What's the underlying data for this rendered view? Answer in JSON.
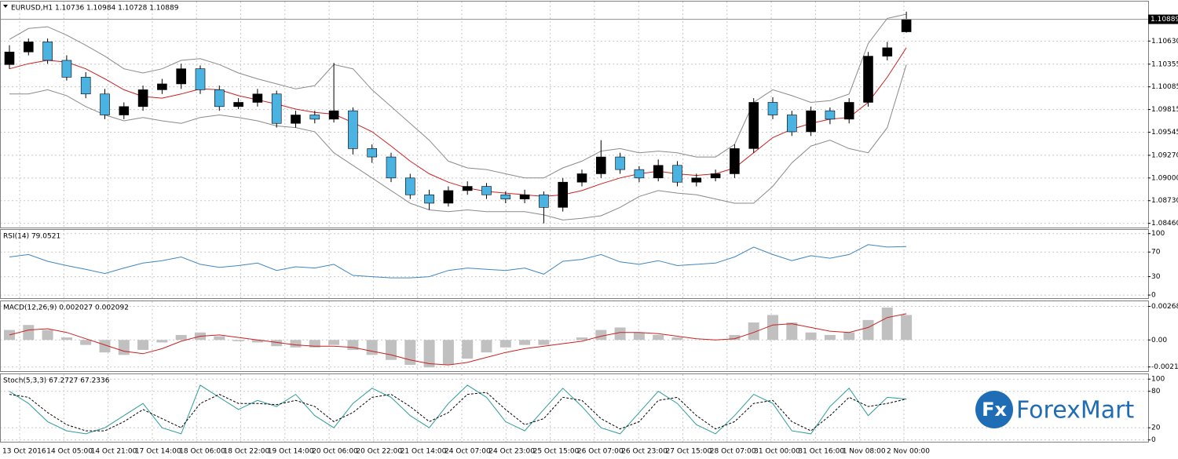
{
  "chart_data": [
    {
      "type": "candlestick",
      "title": "EURUSD,H1  1.10736 1.10984 1.10728 1.10889",
      "open": [
        1.1035,
        1.105,
        1.1062,
        1.104,
        1.102,
        1.1,
        1.0975,
        1.0985,
        1.1005,
        1.1012,
        1.103,
        1.1005,
        1.0985,
        1.099,
        1.1,
        1.0965,
        1.0975,
        1.097,
        1.098,
        1.0935,
        1.0925,
        1.09,
        1.088,
        1.087,
        1.0885,
        1.089,
        1.088,
        1.0875,
        1.088,
        1.0865,
        1.0895,
        1.0905,
        1.0925,
        1.091,
        1.09,
        1.0915,
        1.0895,
        1.09,
        1.0905,
        1.0935,
        1.099,
        1.0975,
        1.0955,
        1.098,
        1.097,
        1.099,
        1.1045,
        1.1074
      ],
      "high": [
        1.1058,
        1.1066,
        1.1066,
        1.1046,
        1.1026,
        1.1006,
        1.099,
        1.101,
        1.1018,
        1.1036,
        1.1034,
        1.101,
        1.0995,
        1.1006,
        1.1004,
        1.098,
        1.098,
        1.1037,
        1.0984,
        1.094,
        1.093,
        1.0905,
        1.0886,
        1.089,
        1.0896,
        1.0894,
        1.0884,
        1.0886,
        1.0884,
        1.09,
        1.091,
        1.0945,
        1.093,
        1.0914,
        1.0922,
        1.092,
        1.0905,
        1.091,
        1.094,
        1.0995,
        1.0996,
        1.098,
        1.0985,
        1.0984,
        1.0995,
        1.105,
        1.1062,
        1.1098
      ],
      "low": [
        1.103,
        1.1046,
        1.1036,
        1.1016,
        1.0995,
        1.097,
        1.097,
        1.098,
        1.1,
        1.1006,
        1.1,
        1.098,
        1.0982,
        1.0985,
        1.096,
        1.096,
        1.0965,
        1.0966,
        1.0928,
        1.0918,
        1.0895,
        1.0875,
        1.0862,
        1.0866,
        1.088,
        1.0875,
        1.087,
        1.087,
        1.0846,
        1.086,
        1.089,
        1.09,
        1.0905,
        1.0895,
        1.0896,
        1.089,
        1.089,
        1.0896,
        1.09,
        1.093,
        1.097,
        1.095,
        1.095,
        1.0964,
        1.0965,
        1.0985,
        1.104,
        1.1073
      ],
      "close": [
        1.105,
        1.1062,
        1.104,
        1.102,
        1.1,
        1.0975,
        1.0985,
        1.1005,
        1.1012,
        1.103,
        1.1005,
        1.0985,
        1.099,
        1.1,
        1.0965,
        1.0975,
        1.097,
        1.098,
        1.0935,
        1.0925,
        1.09,
        1.088,
        1.087,
        1.0885,
        1.089,
        1.088,
        1.0875,
        1.088,
        1.0865,
        1.0895,
        1.0905,
        1.0925,
        1.091,
        1.09,
        1.0915,
        1.0895,
        1.09,
        1.0905,
        1.0935,
        1.099,
        1.0975,
        1.0955,
        1.098,
        1.097,
        1.099,
        1.1045,
        1.1055,
        1.1089
      ],
      "up_color": "#000000",
      "down_color": "#4ab3e2",
      "lines": [
        {
          "color": "#8a8a8a",
          "values": [
            1.1065,
            1.1078,
            1.108,
            1.107,
            1.1058,
            1.1045,
            1.103,
            1.1025,
            1.103,
            1.104,
            1.1042,
            1.1035,
            1.1025,
            1.1018,
            1.1012,
            1.1006,
            1.101,
            1.1035,
            1.103,
            1.1005,
            1.0985,
            1.0965,
            1.0945,
            1.092,
            1.0912,
            1.091,
            1.0905,
            1.09,
            1.09,
            1.0912,
            1.092,
            1.0932,
            1.0935,
            1.093,
            1.0932,
            1.093,
            1.0925,
            1.0925,
            1.094,
            1.099,
            1.1005,
            1.0998,
            1.099,
            1.0992,
            1.1,
            1.106,
            1.109,
            1.1095
          ]
        },
        {
          "color": "#cc2020",
          "values": [
            1.103,
            1.1036,
            1.104,
            1.1038,
            1.103,
            1.1018,
            1.1005,
            1.0997,
            1.0995,
            1.1,
            1.1006,
            1.1005,
            1.0998,
            1.0993,
            1.0988,
            1.0982,
            1.0978,
            1.0976,
            1.0966,
            1.0955,
            1.0938,
            1.092,
            1.0905,
            1.0895,
            1.0888,
            1.0884,
            1.0882,
            1.088,
            1.0878,
            1.088,
            1.0885,
            1.0893,
            1.09,
            1.0905,
            1.0908,
            1.0905,
            1.0903,
            1.0905,
            1.0912,
            1.093,
            1.0948,
            1.0958,
            1.0965,
            1.097,
            1.0972,
            1.099,
            1.102,
            1.1055
          ]
        },
        {
          "color": "#8a8a8a",
          "values": [
            1.1,
            1.1,
            1.1005,
            1.0998,
            1.0985,
            1.0975,
            1.0968,
            1.0972,
            1.0968,
            1.0965,
            1.0972,
            1.0975,
            1.0972,
            1.0968,
            1.0962,
            1.096,
            1.0955,
            1.093,
            1.0915,
            1.09,
            1.0885,
            1.087,
            1.0862,
            1.086,
            1.0862,
            1.086,
            1.086,
            1.086,
            1.0856,
            1.085,
            1.0852,
            1.0855,
            1.0865,
            1.0878,
            1.0885,
            1.0882,
            1.088,
            1.0875,
            1.087,
            1.087,
            1.089,
            1.0918,
            1.0938,
            1.0945,
            1.0935,
            1.093,
            1.096,
            1.1035
          ]
        }
      ],
      "last_price": 1.10889,
      "ylim": [
        1.0841,
        1.111
      ],
      "yticks": [
        {
          "value": 1.1063,
          "label": "1.10630"
        },
        1.10355,
        1.10085,
        1.09815,
        1.09545,
        {
          "value": 1.0927,
          "label": "1.09270"
        },
        {
          "value": 1.09,
          "label": "1.09000"
        },
        {
          "value": 1.0873,
          "label": "1.08730"
        },
        {
          "value": 1.0846,
          "label": "1.08460"
        }
      ],
      "grid": true
    },
    {
      "type": "line",
      "title": "RSI(14) 79.0521",
      "series": [
        {
          "color": "#3f86c0",
          "values": [
            62,
            66,
            55,
            48,
            42,
            35,
            44,
            52,
            56,
            62,
            50,
            45,
            48,
            52,
            40,
            46,
            44,
            50,
            32,
            30,
            28,
            28,
            30,
            40,
            44,
            42,
            40,
            44,
            34,
            55,
            58,
            66,
            54,
            50,
            56,
            48,
            50,
            52,
            62,
            78,
            66,
            56,
            64,
            60,
            66,
            82,
            78,
            79
          ]
        }
      ],
      "ylim": [
        -5,
        106
      ],
      "yticks": [
        0,
        30,
        70,
        100
      ],
      "grid": true
    },
    {
      "type": "combo",
      "title": "MACD(12,26,9) 0.002027 0.002092",
      "series": [
        {
          "kind": "bar",
          "color": "#c0c0c0",
          "values": [
            0.0008,
            0.0012,
            0.0008,
            0.0002,
            -0.0004,
            -0.001,
            -0.0012,
            -0.0008,
            -0.0002,
            0.0004,
            0.0006,
            0.0003,
            -0.0001,
            -0.0002,
            -0.0005,
            -0.0006,
            -0.0006,
            -0.0004,
            -0.0008,
            -0.0012,
            -0.0016,
            -0.002,
            -0.0022,
            -0.002,
            -0.0015,
            -0.001,
            -0.0006,
            -0.0004,
            -0.0004,
            0,
            0.0002,
            0.0008,
            0.001,
            0.0006,
            0.0004,
            0.0002,
            0,
            0,
            0.0004,
            0.0014,
            0.002,
            0.0014,
            0.0006,
            0.0004,
            0.0006,
            0.0016,
            0.0026,
            0.002
          ]
        },
        {
          "kind": "line",
          "color": "#cc2020",
          "values": [
            0.0004,
            0.0008,
            0.0009,
            0.0006,
            0.0001,
            -0.0004,
            -0.0009,
            -0.0011,
            -0.0007,
            -0.0001,
            0.0003,
            0.0004,
            0.0002,
            0,
            -0.0002,
            -0.0004,
            -0.0005,
            -0.0005,
            -0.0006,
            -0.0009,
            -0.0012,
            -0.0016,
            -0.0019,
            -0.002,
            -0.0018,
            -0.0014,
            -0.001,
            -0.0007,
            -0.0005,
            -0.0003,
            -0.0001,
            0.0003,
            0.0006,
            0.0006,
            0.0005,
            0.0003,
            0.0001,
            0,
            0.0001,
            0.0006,
            0.0012,
            0.0013,
            0.001,
            0.0007,
            0.0006,
            0.001,
            0.0018,
            0.0021
          ]
        }
      ],
      "ylim": [
        -0.0025,
        0.0031
      ],
      "yticks": [
        -0.002166,
        {
          "value": 0,
          "label": "0.00"
        },
        0.002688
      ],
      "grid": true
    },
    {
      "type": "line",
      "title": "Stoch(5,3,3) 67.2727 67.2336",
      "series": [
        {
          "color": "#2f9c9c",
          "values": [
            80,
            60,
            30,
            15,
            10,
            20,
            40,
            60,
            20,
            10,
            90,
            70,
            50,
            65,
            55,
            75,
            40,
            20,
            60,
            85,
            70,
            40,
            20,
            60,
            90,
            70,
            30,
            15,
            50,
            85,
            55,
            20,
            10,
            45,
            80,
            60,
            25,
            10,
            40,
            75,
            60,
            15,
            10,
            55,
            85,
            40,
            70,
            67.27
          ]
        },
        {
          "color": "#000000",
          "dashed": true,
          "values": [
            75,
            70,
            45,
            25,
            15,
            15,
            30,
            50,
            35,
            20,
            60,
            75,
            60,
            60,
            58,
            65,
            55,
            30,
            45,
            70,
            75,
            55,
            30,
            45,
            75,
            78,
            50,
            25,
            35,
            70,
            65,
            35,
            18,
            30,
            65,
            70,
            40,
            18,
            30,
            60,
            65,
            30,
            15,
            40,
            70,
            55,
            60,
            67.23
          ]
        }
      ],
      "ylim": [
        -3,
        108
      ],
      "yticks": [
        0,
        20,
        80,
        100
      ],
      "grid": true
    }
  ],
  "time_axis": [
    "13 Oct 2016",
    "14 Oct 05:00",
    "14 Oct 21:00",
    "17 Oct 14:00",
    "18 Oct 06:00",
    "18 Oct 22:00",
    "19 Oct 14:00",
    "20 Oct 06:00",
    "20 Oct 22:00",
    "21 Oct 14:00",
    "24 Oct 07:00",
    "24 Oct 23:00",
    "25 Oct 15:00",
    "26 Oct 07:00",
    "26 Oct 23:00",
    "27 Oct 15:00",
    "28 Oct 07:00",
    "31 Oct 00:00",
    "31 Oct 16:00",
    "1 Nov 08:00",
    "2 Nov 00:00"
  ],
  "logo": {
    "badge": "Fx",
    "text": "ForexMart"
  }
}
